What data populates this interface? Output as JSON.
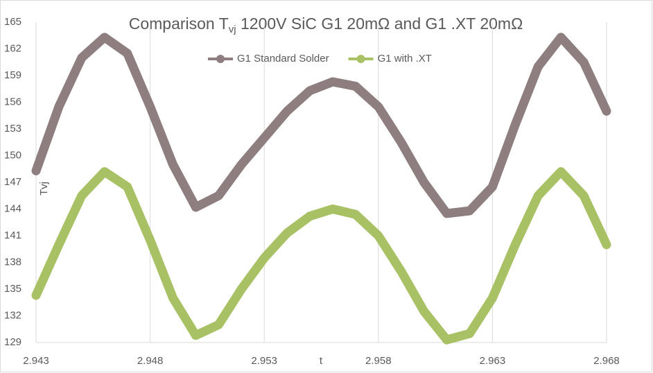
{
  "chart_data": {
    "type": "line",
    "title": [
      "Comparison T",
      "vj",
      " 1200V SiC G1 20mΩ and G1 .XT 20mΩ"
    ],
    "x_label": "t",
    "y_label": "Tvj",
    "x": [
      2.943,
      2.944,
      2.945,
      2.946,
      2.947,
      2.948,
      2.949,
      2.95,
      2.951,
      2.952,
      2.953,
      2.954,
      2.955,
      2.956,
      2.957,
      2.958,
      2.959,
      2.96,
      2.961,
      2.962,
      2.963,
      2.964,
      2.965,
      2.966,
      2.967,
      2.968
    ],
    "series": [
      {
        "name": "G1 Standard Solder",
        "color": "#8e7e80",
        "values": [
          148.3,
          155.5,
          161.0,
          163.3,
          161.5,
          155.5,
          149.0,
          144.2,
          145.5,
          149.0,
          152.0,
          155.0,
          157.3,
          158.3,
          157.8,
          155.5,
          151.5,
          147.0,
          143.5,
          143.8,
          146.5,
          153.5,
          160.0,
          163.3,
          160.5,
          155.0
        ]
      },
      {
        "name": "G1 with .XT",
        "color": "#a8c164",
        "values": [
          134.3,
          140.0,
          145.5,
          148.2,
          146.5,
          140.5,
          134.0,
          129.8,
          131.0,
          135.0,
          138.5,
          141.3,
          143.2,
          144.0,
          143.4,
          141.0,
          137.0,
          132.5,
          129.3,
          130.0,
          134.0,
          140.0,
          145.5,
          148.2,
          145.5,
          140.0
        ]
      }
    ],
    "xlim": [
      2.943,
      2.968
    ],
    "ylim": [
      129,
      165
    ],
    "xticks": [
      2.943,
      2.948,
      2.953,
      2.958,
      2.963,
      2.968
    ],
    "yticks": [
      129,
      132,
      135,
      138,
      141,
      144,
      147,
      150,
      153,
      156,
      159,
      162,
      165
    ],
    "grid": "x",
    "legend": "top"
  }
}
